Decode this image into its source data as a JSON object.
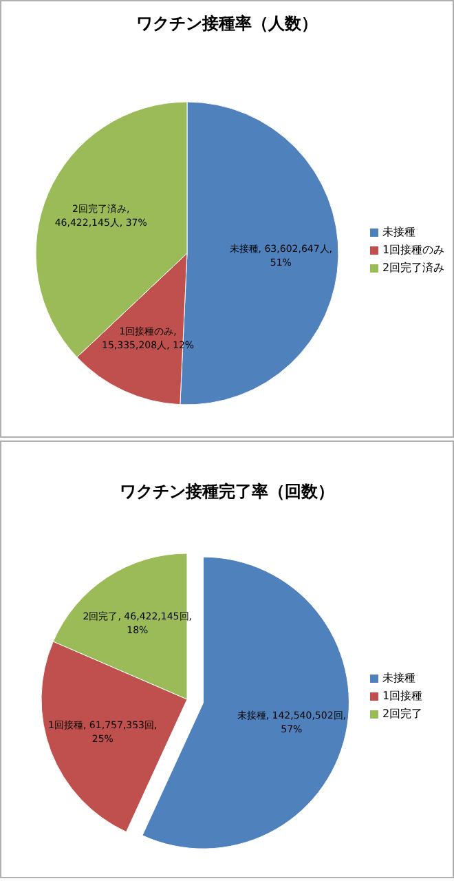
{
  "chart_data": [
    {
      "type": "pie",
      "title": "ワクチン接種率（人数）",
      "categories": [
        "未接種",
        "1回接種のみ",
        "2回完了済み"
      ],
      "values": [
        63602647,
        15335208,
        46422145
      ],
      "colors": [
        "#4f81bd",
        "#c0504d",
        "#9bbb59"
      ],
      "value_labels": [
        "未接種, 63,602,647人, 51%",
        "1回接種のみ, 15,335,208人, 12%",
        "2回完了済み, 46,422,145人, 37%"
      ],
      "legend": "right"
    },
    {
      "type": "pie",
      "title": "ワクチン接種完了率（回数）",
      "categories": [
        "未接種",
        "1回接種",
        "2回完了"
      ],
      "values": [
        142540502,
        61757353,
        46422145
      ],
      "colors": [
        "#4f81bd",
        "#c0504d",
        "#9bbb59"
      ],
      "value_labels": [
        "未接種, 142,540,502回, 57%",
        "1回接種, 61,757,353回, 25%",
        "2回完了, 46,422,145回, 18%"
      ],
      "legend": "right"
    }
  ]
}
